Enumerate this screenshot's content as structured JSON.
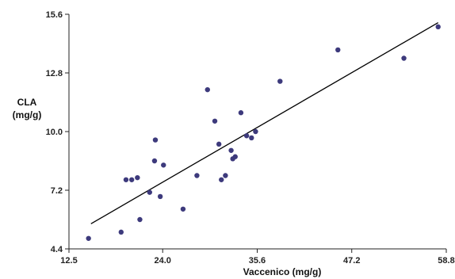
{
  "chart_data": {
    "type": "scatter",
    "xlabel": "Vaccenico (mg/g)",
    "ylabel_lines": [
      "CLA",
      "(mg/g)"
    ],
    "xlim": [
      12.5,
      58.8
    ],
    "ylim": [
      4.4,
      15.6
    ],
    "x_ticks": [
      "12.5",
      "24.0",
      "35.6",
      "47.2",
      "58.8"
    ],
    "y_ticks": [
      "4.4",
      "7.2",
      "10.0",
      "12.8",
      "15.6"
    ],
    "grid": false,
    "colors": {
      "point": "#3d3a7c",
      "trend": "#000000",
      "axis": "#222222"
    },
    "points": [
      {
        "x": 14.9,
        "y": 4.9
      },
      {
        "x": 18.9,
        "y": 5.2
      },
      {
        "x": 19.5,
        "y": 7.7
      },
      {
        "x": 20.2,
        "y": 7.7
      },
      {
        "x": 20.9,
        "y": 7.8
      },
      {
        "x": 21.2,
        "y": 5.8
      },
      {
        "x": 22.4,
        "y": 7.1
      },
      {
        "x": 23.0,
        "y": 8.6
      },
      {
        "x": 23.1,
        "y": 9.6
      },
      {
        "x": 23.7,
        "y": 6.9
      },
      {
        "x": 24.1,
        "y": 8.4
      },
      {
        "x": 26.5,
        "y": 6.3
      },
      {
        "x": 28.2,
        "y": 7.9
      },
      {
        "x": 29.5,
        "y": 12.0
      },
      {
        "x": 30.4,
        "y": 10.5
      },
      {
        "x": 30.9,
        "y": 9.4
      },
      {
        "x": 31.2,
        "y": 7.7
      },
      {
        "x": 31.7,
        "y": 7.9
      },
      {
        "x": 32.4,
        "y": 9.1
      },
      {
        "x": 32.6,
        "y": 8.7
      },
      {
        "x": 32.9,
        "y": 8.8
      },
      {
        "x": 33.6,
        "y": 10.9
      },
      {
        "x": 34.3,
        "y": 9.8
      },
      {
        "x": 34.9,
        "y": 9.7
      },
      {
        "x": 35.4,
        "y": 10.0
      },
      {
        "x": 38.4,
        "y": 12.4
      },
      {
        "x": 45.5,
        "y": 13.9
      },
      {
        "x": 53.6,
        "y": 13.5
      },
      {
        "x": 57.8,
        "y": 15.0
      }
    ],
    "trendline": [
      {
        "x": 15.2,
        "y": 5.6
      },
      {
        "x": 57.8,
        "y": 15.2
      }
    ]
  }
}
